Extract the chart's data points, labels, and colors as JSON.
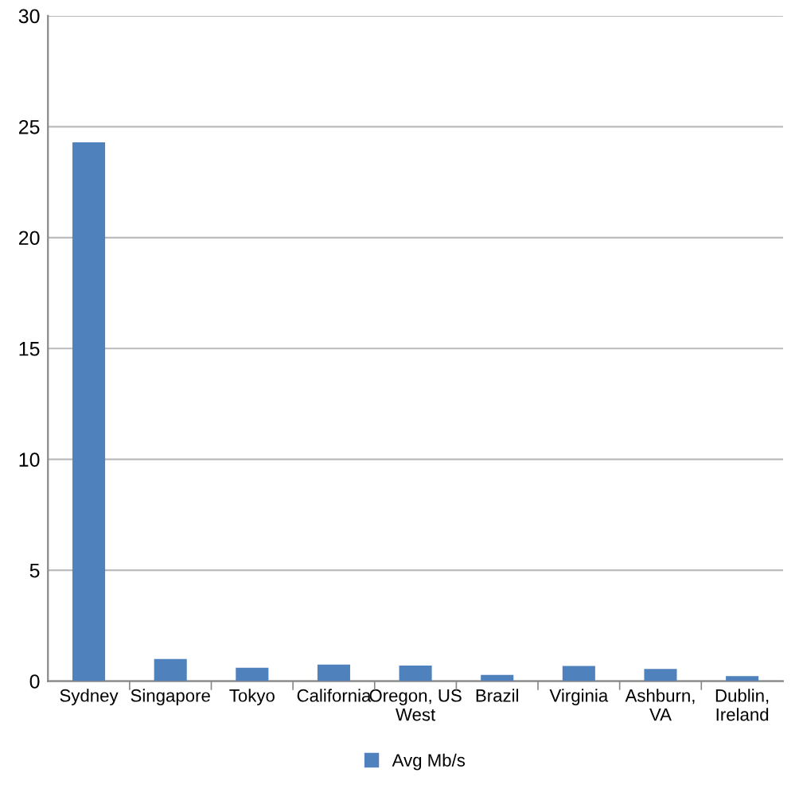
{
  "chart_data": {
    "type": "bar",
    "categories": [
      "Sydney",
      "Singapore",
      "Tokyo",
      "California",
      "Oregon, US\nWest",
      "Brazil",
      "Virginia",
      "Ashburn,\nVA",
      "Dublin,\nIreland"
    ],
    "series": [
      {
        "name": "Avg Mb/s",
        "color": "#4f81bd",
        "values": [
          24.3,
          1.0,
          0.6,
          0.75,
          0.7,
          0.28,
          0.68,
          0.55,
          0.23
        ]
      }
    ],
    "ylim": [
      0,
      30
    ],
    "yticks": [
      0,
      5,
      10,
      15,
      20,
      25,
      30
    ],
    "grid": "y",
    "legend": "bottom"
  }
}
